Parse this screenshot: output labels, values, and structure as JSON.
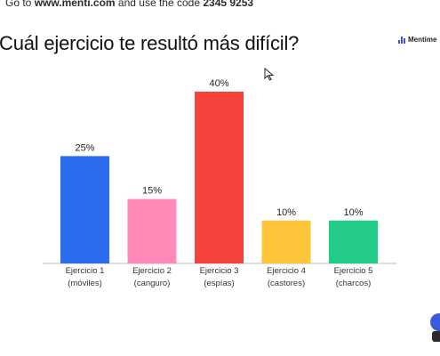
{
  "header": {
    "hint_prefix": "Go to ",
    "hint_url": "www.menti.com",
    "hint_middle": " and use the code ",
    "hint_code": "2345 9253"
  },
  "question": {
    "title": "Cuál ejercicio te resultó más difícil?"
  },
  "brand": {
    "name": "Mentime"
  },
  "chart_data": {
    "type": "bar",
    "title": "Cuál ejercicio te resultó más difícil?",
    "categories": [
      [
        "Ejercicio 1",
        "(móviles)"
      ],
      [
        "Ejercicio 2",
        "(canguro)"
      ],
      [
        "Ejercicio 3",
        "(espías)"
      ],
      [
        "Ejercicio 4",
        "(castores)"
      ],
      [
        "Ejercicio 5",
        "(charcos)"
      ]
    ],
    "values": [
      25,
      15,
      40,
      10,
      10
    ],
    "value_labels": [
      "25%",
      "15%",
      "40%",
      "10%",
      "10%"
    ],
    "colors": [
      "#2b6cf0",
      "#ff8ab8",
      "#f5423f",
      "#ffc53a",
      "#22cc88"
    ],
    "ylim": [
      0,
      40
    ],
    "grid": false,
    "legend": "none"
  }
}
